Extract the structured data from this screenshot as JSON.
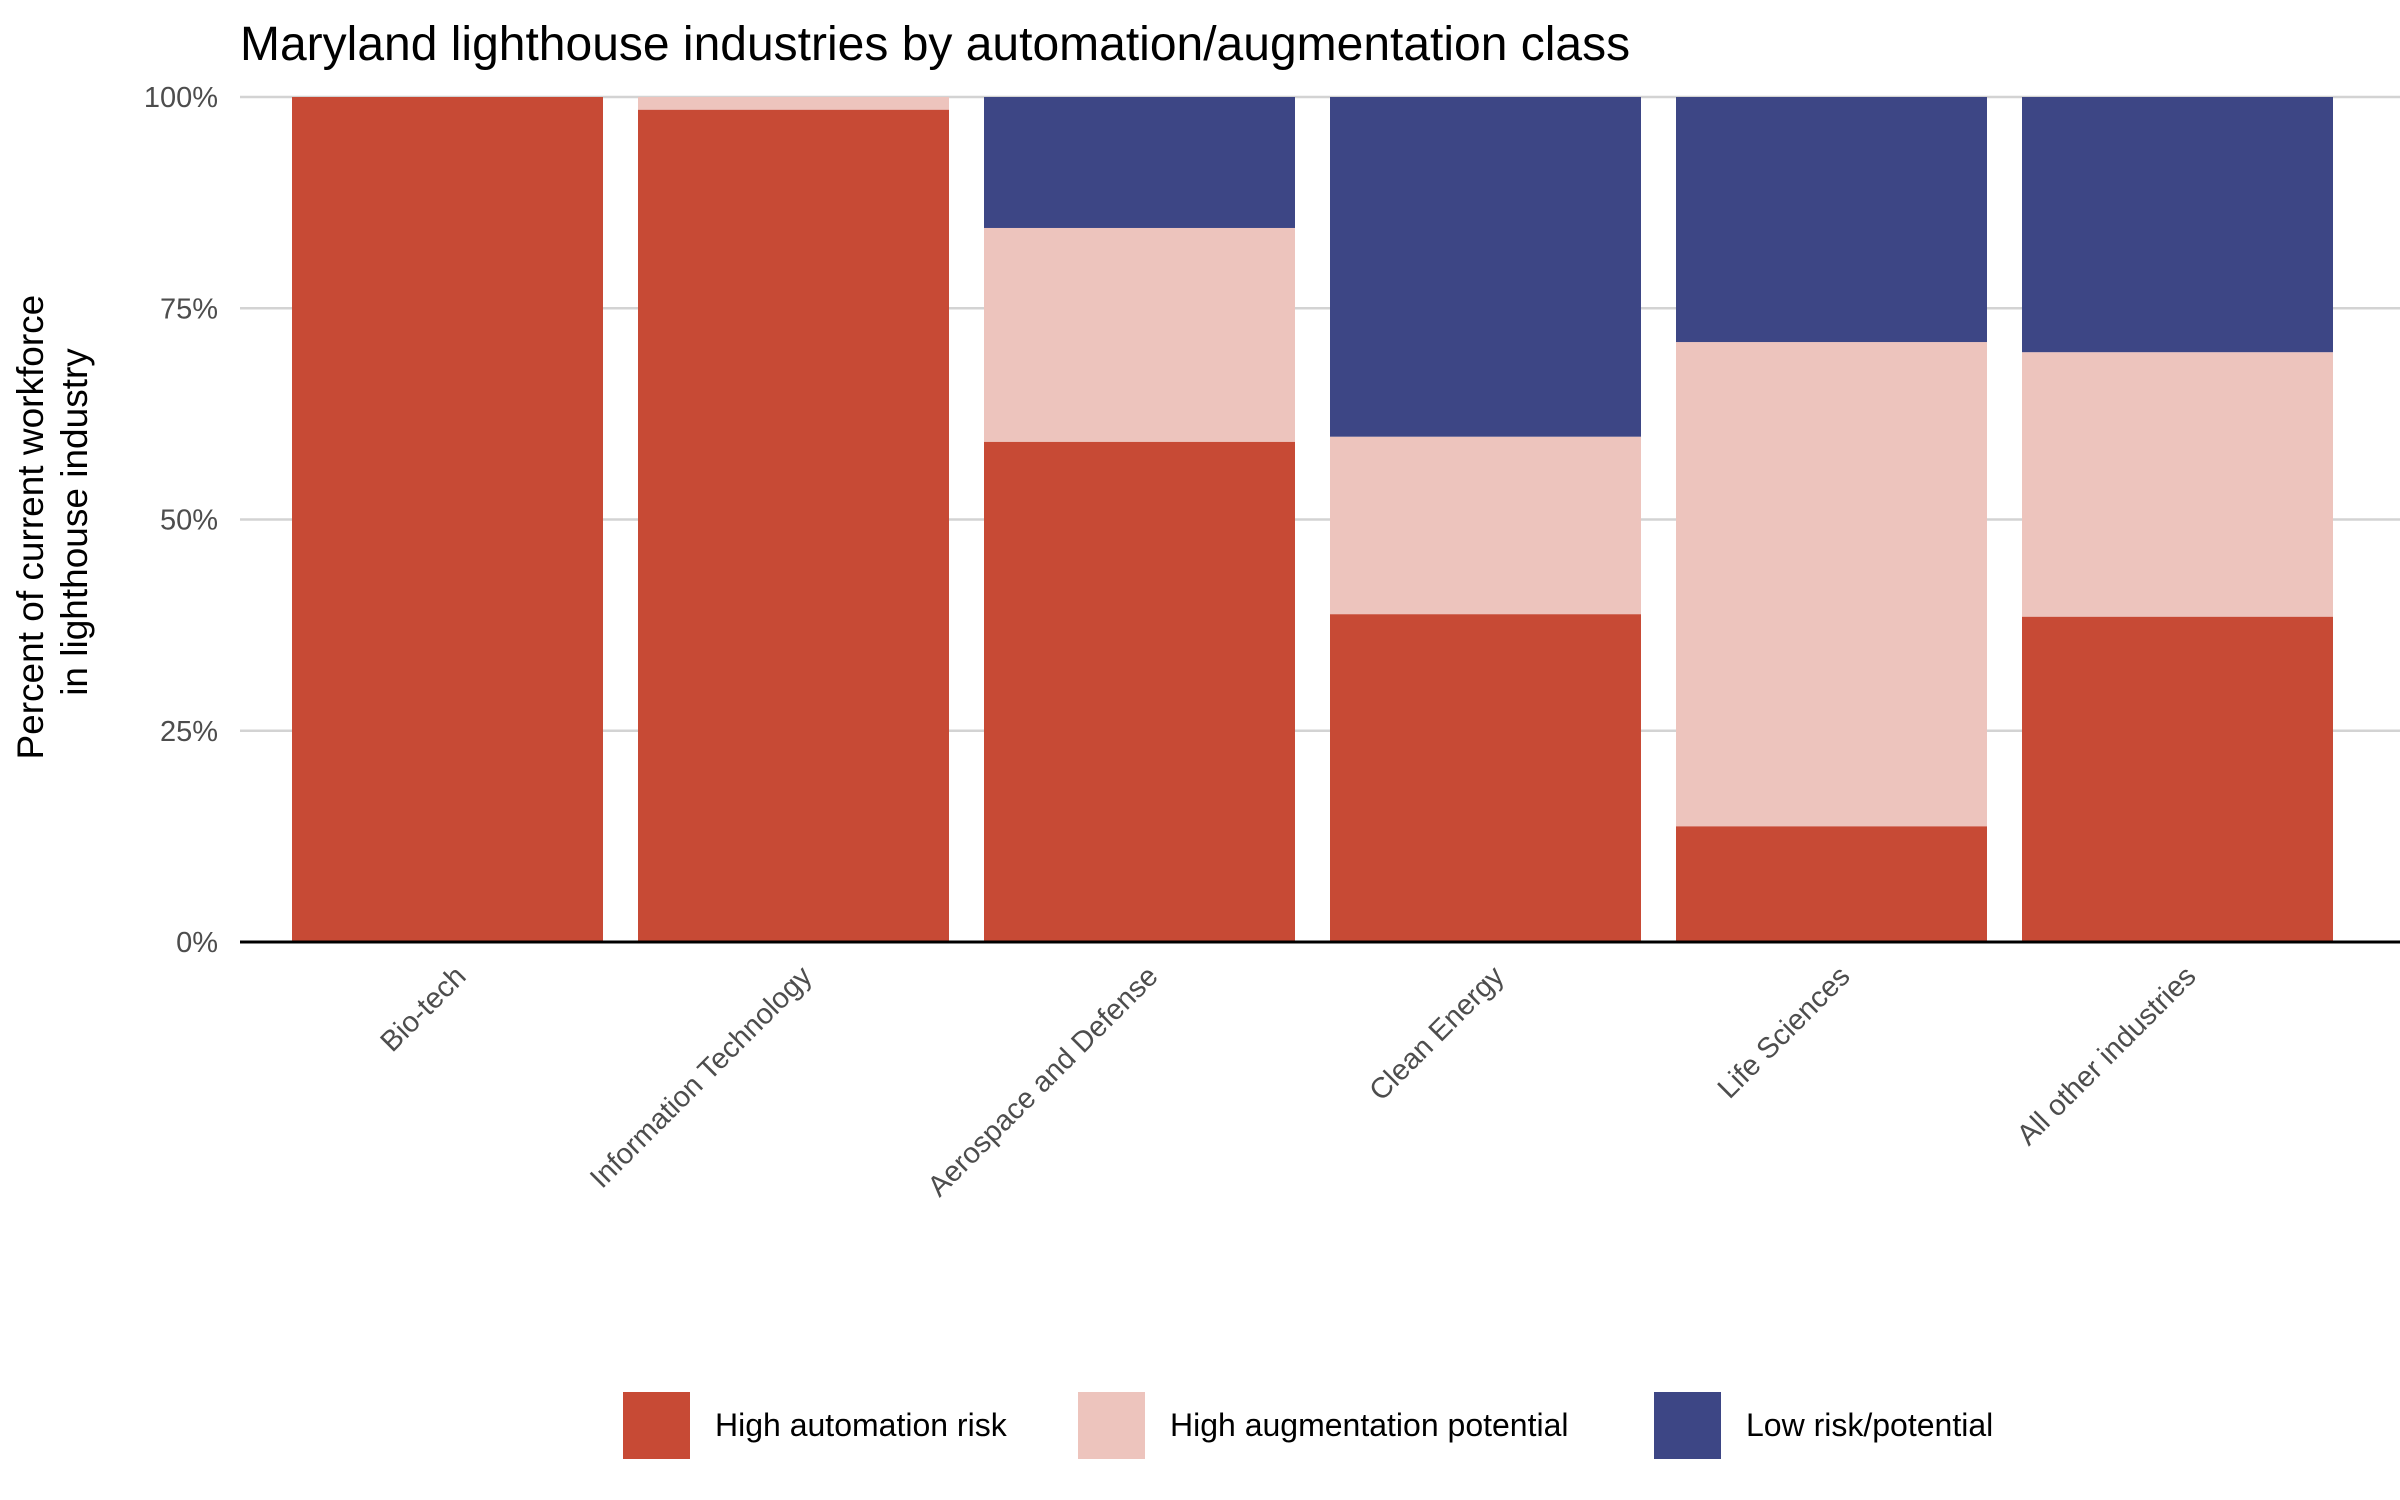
{
  "chart_data": {
    "type": "bar",
    "stacked": true,
    "title": "Maryland lighthouse industries by automation/augmentation class",
    "xlabel": "",
    "ylabel_lines": [
      "Percent of current workforce",
      "in lighthouse industry"
    ],
    "ylim": [
      0,
      1
    ],
    "yticks": [
      {
        "value": 0,
        "label": "0%"
      },
      {
        "value": 0.25,
        "label": "25%"
      },
      {
        "value": 0.5,
        "label": "50%"
      },
      {
        "value": 0.75,
        "label": "75%"
      },
      {
        "value": 1,
        "label": "100%"
      }
    ],
    "grid": "horizontal",
    "legend_position": "bottom",
    "categories": [
      "Bio-tech",
      "Information Technology",
      "Aerospace and Defense",
      "Clean Energy",
      "Life Sciences",
      "All other industries"
    ],
    "series": [
      {
        "name": "High automation risk",
        "color": "#c74a35",
        "values": [
          1.0,
          0.985,
          0.592,
          0.388,
          0.137,
          0.385
        ]
      },
      {
        "name": "High augmentation potential",
        "color": "#edc4bd",
        "values": [
          0.0,
          0.015,
          0.253,
          0.21,
          0.573,
          0.313
        ]
      },
      {
        "name": "Low risk/potential",
        "color": "#3d4685",
        "values": [
          0.0,
          0.0,
          0.155,
          0.402,
          0.29,
          0.302
        ]
      }
    ]
  }
}
